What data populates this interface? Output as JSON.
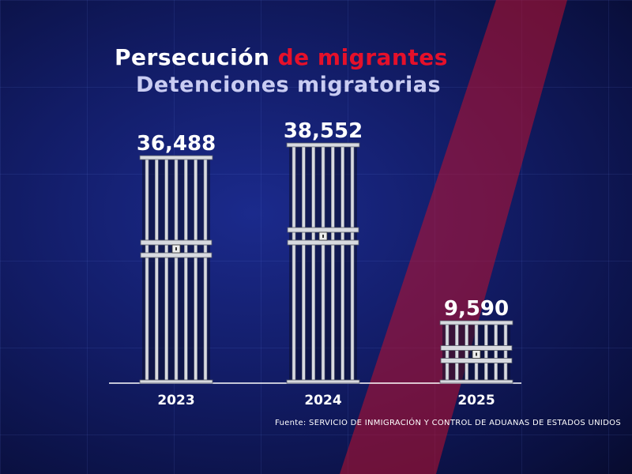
{
  "title_part1": "Persecución",
  "title_part2": "de migrantes",
  "subtitle": "Detenciones migratorias",
  "source": "Fuente: SERVICIO DE INMIGRACIÓN Y CONTROL DE ADUANAS DE ESTADOS UNIDOS",
  "colors": {
    "accent_red": "#e5102a",
    "background": "#121c66",
    "bars": "#d8dae0"
  },
  "chart_data": {
    "type": "bar",
    "categories": [
      "2023",
      "2024",
      "2025"
    ],
    "values": [
      36488,
      38552,
      9590
    ],
    "value_labels": [
      "36,488",
      "38,552",
      "9,590"
    ],
    "title": "Detenciones migratorias",
    "ylim": [
      0,
      38552
    ],
    "grid": false,
    "bar_style": "jail-cell"
  }
}
